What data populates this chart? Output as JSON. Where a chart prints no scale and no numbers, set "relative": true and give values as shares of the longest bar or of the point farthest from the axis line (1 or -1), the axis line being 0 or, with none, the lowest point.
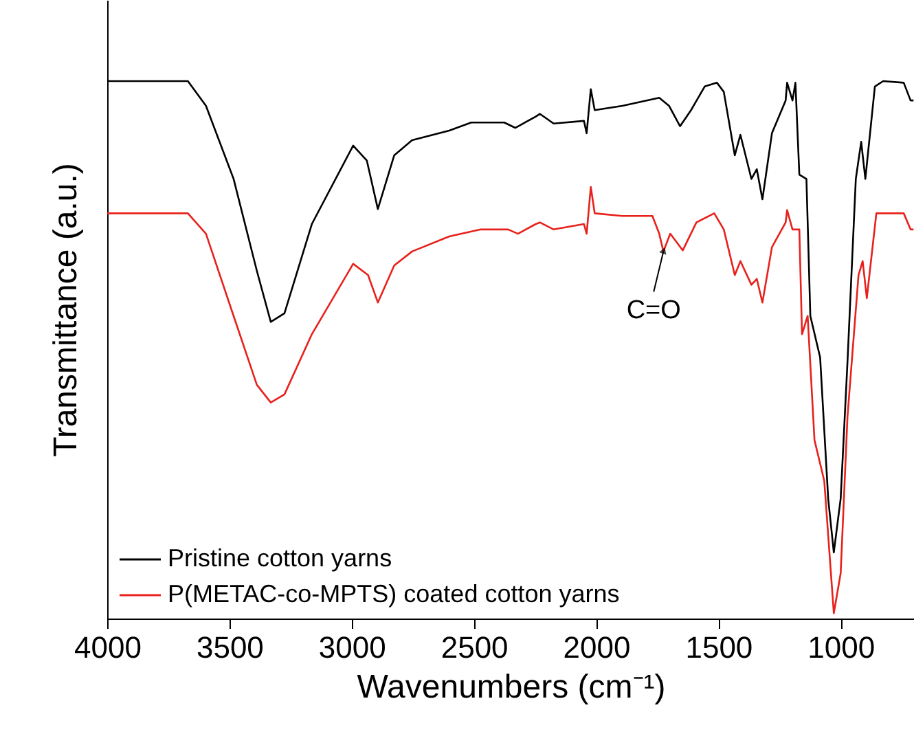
{
  "chart_data": {
    "type": "line",
    "relative": true,
    "xlabel": "Wavenumbers (cm⁻¹)",
    "ylabel": "Transmittance (a.u.)",
    "xlim": [
      4000,
      700
    ],
    "xticks": [
      4000,
      3500,
      3000,
      2500,
      2000,
      1500,
      1000
    ],
    "legend": "bottom left",
    "grid": false,
    "line_style": "solid",
    "marker": "none",
    "annotations": [
      {
        "text": "C=O",
        "x": 1725,
        "y": 0.683
      }
    ],
    "series": [
      {
        "name": "Pristine cotton yarns",
        "color": "#000000",
        "x": [
          4000,
          3670,
          3596,
          3483,
          3388,
          3331,
          3275,
          3163,
          2994,
          2938,
          2893,
          2826,
          2753,
          2601,
          2511,
          2376,
          2331,
          2247,
          2230,
          2174,
          2050,
          2039,
          2022,
          2006,
          1893,
          1742,
          1702,
          1657,
          1612,
          1556,
          1506,
          1478,
          1433,
          1410,
          1365,
          1343,
          1320,
          1281,
          1225,
          1219,
          1197,
          1185,
          1169,
          1140,
          1124,
          1084,
          1051,
          1028,
          1000,
          972,
          938,
          916,
          899,
          860,
          826,
          742,
          714,
          702
        ],
        "values": [
          1.0,
          1.0,
          0.954,
          0.818,
          0.647,
          0.552,
          0.568,
          0.734,
          0.88,
          0.852,
          0.762,
          0.862,
          0.89,
          0.908,
          0.923,
          0.923,
          0.913,
          0.934,
          0.939,
          0.921,
          0.926,
          0.903,
          0.985,
          0.946,
          0.954,
          0.969,
          0.954,
          0.916,
          0.946,
          0.99,
          0.997,
          0.98,
          0.862,
          0.9,
          0.818,
          0.836,
          0.78,
          0.903,
          0.964,
          0.997,
          0.964,
          0.997,
          0.826,
          0.818,
          0.563,
          0.486,
          0.223,
          0.123,
          0.223,
          0.478,
          0.818,
          0.887,
          0.818,
          0.99,
          1.0,
          0.997,
          0.964,
          0.964
        ]
      },
      {
        "name": "P(METAC-co-MPTS) coated cotton yarns",
        "color": "#e8211c",
        "x": [
          4000,
          3670,
          3596,
          3483,
          3388,
          3331,
          3275,
          3163,
          2994,
          2933,
          2893,
          2826,
          2753,
          2601,
          2472,
          2360,
          2320,
          2247,
          2230,
          2174,
          2050,
          2039,
          2022,
          2006,
          1893,
          1770,
          1742,
          1725,
          1697,
          1646,
          1590,
          1517,
          1478,
          1433,
          1410,
          1365,
          1343,
          1320,
          1281,
          1225,
          1219,
          1197,
          1169,
          1158,
          1135,
          1107,
          1067,
          1028,
          1000,
          972,
          927,
          910,
          893,
          854,
          742,
          714,
          702
        ],
        "values": [
          0.754,
          0.754,
          0.716,
          0.563,
          0.435,
          0.402,
          0.417,
          0.529,
          0.66,
          0.639,
          0.588,
          0.657,
          0.683,
          0.711,
          0.724,
          0.724,
          0.716,
          0.734,
          0.737,
          0.724,
          0.734,
          0.716,
          0.803,
          0.754,
          0.749,
          0.749,
          0.716,
          0.683,
          0.716,
          0.685,
          0.737,
          0.754,
          0.724,
          0.639,
          0.665,
          0.621,
          0.632,
          0.588,
          0.691,
          0.737,
          0.76,
          0.724,
          0.724,
          0.529,
          0.563,
          0.332,
          0.256,
          0.01,
          0.084,
          0.376,
          0.639,
          0.665,
          0.596,
          0.754,
          0.754,
          0.724,
          0.724
        ]
      }
    ]
  }
}
